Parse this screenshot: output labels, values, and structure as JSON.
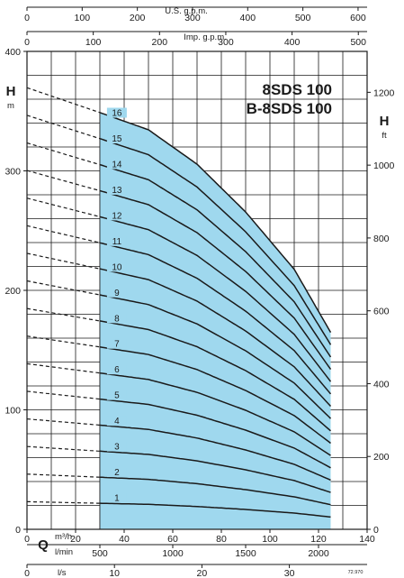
{
  "chart_data": {
    "type": "line",
    "title": [
      "8SDS 100",
      "B-8SDS 100"
    ],
    "y_left": {
      "label": "H",
      "unit": "m",
      "range": [
        0,
        400
      ],
      "ticks": [
        0,
        100,
        200,
        300,
        400
      ]
    },
    "y_right": {
      "label": "H",
      "unit": "ft",
      "range": [
        0,
        1312
      ],
      "ticks": [
        0,
        200,
        400,
        600,
        800,
        1000,
        1200
      ]
    },
    "x_bottom_m3h": {
      "label": "Q",
      "unit": "m³/h",
      "range": [
        0,
        140
      ],
      "ticks": [
        0,
        20,
        40,
        60,
        80,
        100,
        120,
        140
      ]
    },
    "x_bottom_lmin": {
      "unit": "l/min",
      "ticks": [
        500,
        1000,
        1500,
        2000
      ]
    },
    "x_bottom_ls": {
      "unit": "l/s",
      "ticks": [
        0,
        10,
        20,
        30
      ]
    },
    "x_top_usgpm": {
      "unit": "U.S. g.p.m.",
      "ticks": [
        0,
        100,
        200,
        300,
        400,
        500,
        600
      ]
    },
    "x_top_impgpm": {
      "unit": "Imp. g.p.m.",
      "ticks": [
        0,
        100,
        200,
        300,
        400,
        500
      ]
    },
    "operating_range_m3h": [
      30,
      125
    ],
    "grid": true,
    "stage_curve": {
      "q": [
        0,
        30,
        50,
        70,
        90,
        100,
        110,
        120,
        125
      ],
      "h": [
        23.1,
        21.8,
        20.9,
        19.1,
        16.6,
        15.1,
        13.6,
        11.4,
        10.3
      ]
    },
    "series": [
      {
        "name": "1",
        "stages": 1
      },
      {
        "name": "2",
        "stages": 2
      },
      {
        "name": "3",
        "stages": 3
      },
      {
        "name": "4",
        "stages": 4
      },
      {
        "name": "5",
        "stages": 5
      },
      {
        "name": "6",
        "stages": 6
      },
      {
        "name": "7",
        "stages": 7
      },
      {
        "name": "8",
        "stages": 8
      },
      {
        "name": "9",
        "stages": 9
      },
      {
        "name": "10",
        "stages": 10
      },
      {
        "name": "11",
        "stages": 11
      },
      {
        "name": "12",
        "stages": 12
      },
      {
        "name": "13",
        "stages": 13
      },
      {
        "name": "14",
        "stages": 14
      },
      {
        "name": "15",
        "stages": 15
      },
      {
        "name": "16",
        "stages": 16
      }
    ],
    "footnote": "72.970",
    "colors": {
      "fill": "#9fd8ee",
      "line": "#1a1a1a"
    }
  }
}
